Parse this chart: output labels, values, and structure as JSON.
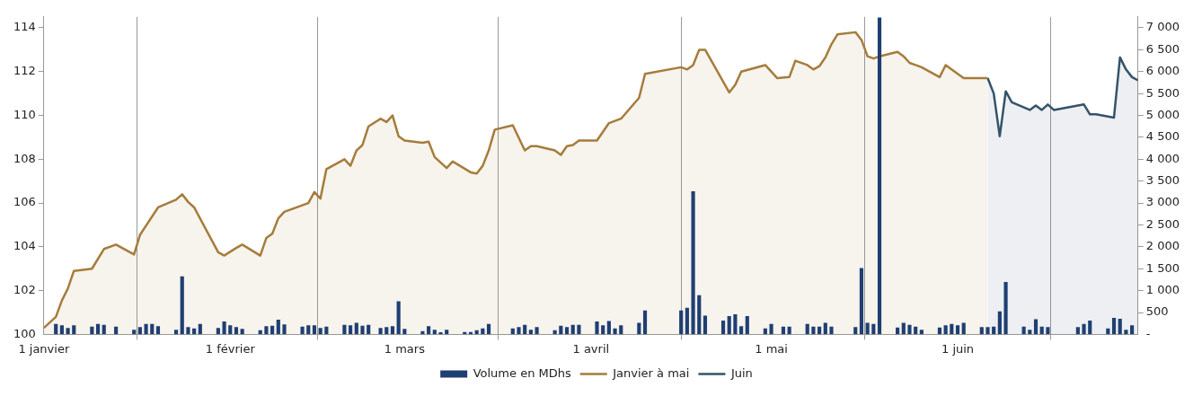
{
  "chart_data": {
    "type": "area",
    "xlim": [
      "--01-01",
      "--07-01"
    ],
    "xticks": [
      {
        "value": "--01-01",
        "label": "1 janvier"
      },
      {
        "value": "--02-01",
        "label": "1 février"
      },
      {
        "value": "--03-01",
        "label": "1 mars"
      },
      {
        "value": "--04-01",
        "label": "1 avril"
      },
      {
        "value": "--05-01",
        "label": "1 mai"
      },
      {
        "value": "--06-01",
        "label": "1 juin"
      }
    ],
    "ylim": [
      100,
      114.5
    ],
    "yticks": [
      100,
      102,
      104,
      106,
      108,
      110,
      112,
      114
    ],
    "y2lim": [
      0,
      7250
    ],
    "y2ticks": [
      {
        "value": 0,
        "label": "-"
      },
      500,
      {
        "value": 1000,
        "label": "1 000"
      },
      {
        "value": 1500,
        "label": "1 500"
      },
      {
        "value": 2000,
        "label": "2 000"
      },
      {
        "value": 2500,
        "label": "2 500"
      },
      {
        "value": 3000,
        "label": "3 000"
      },
      {
        "value": 3500,
        "label": "3 500"
      },
      {
        "value": 4000,
        "label": "4 000"
      },
      {
        "value": 4500,
        "label": "4 500"
      },
      {
        "value": 5000,
        "label": "5 000"
      },
      {
        "value": 5500,
        "label": "5 500"
      },
      {
        "value": 6000,
        "label": "6 000"
      },
      {
        "value": 6500,
        "label": "6 500"
      },
      {
        "value": 7000,
        "label": "7 000"
      }
    ],
    "grid": "x",
    "legend": "bottom",
    "series": [
      {
        "name": "Volume en MDhs",
        "type": "bar",
        "axis": "y2",
        "color": "#1f3f73",
        "x": [
          "--01-03",
          "--01-04",
          "--01-05",
          "--01-06",
          "--01-09",
          "--01-10",
          "--01-11",
          "--01-13",
          "--01-16",
          "--01-17",
          "--01-18",
          "--01-19",
          "--01-20",
          "--01-23",
          "--01-24",
          "--01-25",
          "--01-26",
          "--01-27",
          "--01-30",
          "--01-31",
          "--02-01",
          "--02-02",
          "--02-03",
          "--02-06",
          "--02-07",
          "--02-08",
          "--02-09",
          "--02-10",
          "--02-13",
          "--02-14",
          "--02-15",
          "--02-16",
          "--02-17",
          "--02-20",
          "--02-21",
          "--02-22",
          "--02-23",
          "--02-24",
          "--02-26",
          "--02-27",
          "--02-28",
          "--02-29",
          "--03-01",
          "--03-04",
          "--03-05",
          "--03-06",
          "--03-07",
          "--03-08",
          "--03-11",
          "--03-12",
          "--03-13",
          "--03-14",
          "--03-15",
          "--03-19",
          "--03-20",
          "--03-21",
          "--03-22",
          "--03-23",
          "--03-26",
          "--03-27",
          "--03-28",
          "--03-29",
          "--03-30",
          "--04-02",
          "--04-03",
          "--04-04",
          "--04-05",
          "--04-06",
          "--04-09",
          "--04-10",
          "--04-16",
          "--04-17",
          "--04-18",
          "--04-19",
          "--04-20",
          "--04-23",
          "--04-24",
          "--04-25",
          "--04-26",
          "--04-27",
          "--04-30",
          "--05-01",
          "--05-03",
          "--05-04",
          "--05-07",
          "--05-08",
          "--05-09",
          "--05-10",
          "--05-11",
          "--05-15",
          "--05-16",
          "--05-17",
          "--05-18",
          "--05-19",
          "--05-22",
          "--05-23",
          "--05-24",
          "--05-25",
          "--05-26",
          "--05-29",
          "--05-30",
          "--05-31",
          "--06-01",
          "--06-02",
          "--06-05",
          "--06-06",
          "--06-07",
          "--06-08",
          "--06-09",
          "--06-12",
          "--06-13",
          "--06-14",
          "--06-15",
          "--06-16",
          "--06-21",
          "--06-22",
          "--06-23",
          "--06-26",
          "--06-27",
          "--06-28",
          "--06-29",
          "--06-30"
        ],
        "values": [
          230,
          200,
          140,
          200,
          170,
          230,
          210,
          170,
          100,
          160,
          230,
          230,
          180,
          100,
          1320,
          160,
          130,
          230,
          140,
          290,
          200,
          160,
          120,
          90,
          180,
          190,
          330,
          220,
          170,
          200,
          200,
          140,
          170,
          210,
          200,
          260,
          190,
          210,
          140,
          160,
          180,
          750,
          120,
          70,
          180,
          100,
          40,
          100,
          50,
          50,
          90,
          130,
          230,
          130,
          160,
          210,
          100,
          160,
          90,
          190,
          160,
          210,
          210,
          290,
          200,
          300,
          130,
          200,
          260,
          540,
          540,
          600,
          3260,
          890,
          420,
          310,
          410,
          450,
          180,
          410,
          130,
          230,
          170,
          170,
          230,
          170,
          170,
          260,
          170,
          160,
          1510,
          260,
          230,
          7230,
          150,
          260,
          210,
          170,
          100,
          150,
          200,
          230,
          200,
          260,
          160,
          160,
          170,
          520,
          1190,
          170,
          100,
          340,
          170,
          160,
          160,
          230,
          310,
          130,
          370,
          350,
          100,
          200
        ]
      },
      {
        "name": "Janvier à mai",
        "color": "#a57c3b",
        "x": [
          "--01-01",
          "--01-03",
          "--01-04",
          "--01-05",
          "--01-06",
          "--01-09",
          "--01-11",
          "--01-13",
          "--01-16",
          "--01-17",
          "--01-20",
          "--01-23",
          "--01-24",
          "--01-25",
          "--01-26",
          "--01-30",
          "--01-31",
          "--02-02",
          "--02-03",
          "--02-06",
          "--02-07",
          "--02-08",
          "--02-09",
          "--02-10",
          "--02-14",
          "--02-15",
          "--02-16",
          "--02-17",
          "--02-20",
          "--02-21",
          "--02-22",
          "--02-23",
          "--02-24",
          "--02-26",
          "--02-27",
          "--02-28",
          "--02-29",
          "--03-01",
          "--03-04",
          "--03-05",
          "--03-06",
          "--03-08",
          "--03-09",
          "--03-12",
          "--03-13",
          "--03-14",
          "--03-15",
          "--03-16",
          "--03-19",
          "--03-21",
          "--03-22",
          "--03-23",
          "--03-26",
          "--03-27",
          "--03-28",
          "--03-29",
          "--03-30",
          "--04-02",
          "--04-04",
          "--04-06",
          "--04-09",
          "--04-10",
          "--04-16",
          "--04-17",
          "--04-18",
          "--04-19",
          "--04-20",
          "--04-24",
          "--04-25",
          "--04-26",
          "--04-30",
          "--05-02",
          "--05-04",
          "--05-05",
          "--05-07",
          "--05-08",
          "--05-09",
          "--05-10",
          "--05-11",
          "--05-12",
          "--05-15",
          "--05-16",
          "--05-17",
          "--05-18",
          "--05-19",
          "--05-22",
          "--05-23",
          "--05-24",
          "--05-25",
          "--05-26",
          "--05-29",
          "--05-30",
          "--06-02",
          "--06-06"
        ],
        "values": [
          100.3,
          100.8,
          101.55,
          102.1,
          102.9,
          103.0,
          103.9,
          104.1,
          103.65,
          104.55,
          105.8,
          106.15,
          106.4,
          106.05,
          105.8,
          103.75,
          103.6,
          103.95,
          104.1,
          103.6,
          104.4,
          104.6,
          105.3,
          105.6,
          106.0,
          106.5,
          106.2,
          107.55,
          108.0,
          107.7,
          108.4,
          108.65,
          109.5,
          109.85,
          109.7,
          110.0,
          109.05,
          108.85,
          108.75,
          108.8,
          108.1,
          107.6,
          107.9,
          107.4,
          107.35,
          107.7,
          108.4,
          109.35,
          109.55,
          108.4,
          108.6,
          108.6,
          108.4,
          108.2,
          108.6,
          108.65,
          108.85,
          108.85,
          109.65,
          109.85,
          110.8,
          111.9,
          112.2,
          112.1,
          112.3,
          113.0,
          113.0,
          111.05,
          111.4,
          112.0,
          112.3,
          111.7,
          111.75,
          112.5,
          112.3,
          112.1,
          112.25,
          112.65,
          113.25,
          113.7,
          113.8,
          113.45,
          112.7,
          112.6,
          112.7,
          112.9,
          112.7,
          112.4,
          112.3,
          112.2,
          111.75,
          112.3,
          111.7,
          111.7
        ]
      },
      {
        "name": "Juin",
        "color": "#34536a",
        "x": [
          "--06-06",
          "--06-07",
          "--06-08",
          "--06-09",
          "--06-10",
          "--06-13",
          "--06-14",
          "--06-15",
          "--06-16",
          "--06-17",
          "--06-22",
          "--06-23",
          "--06-24",
          "--06-27",
          "--06-28",
          "--06-29",
          "--06-30",
          "--07-01"
        ],
        "values": [
          111.7,
          111.0,
          109.05,
          111.1,
          110.6,
          110.25,
          110.45,
          110.25,
          110.5,
          110.25,
          110.5,
          110.05,
          110.05,
          109.9,
          112.65,
          112.1,
          111.75,
          111.6
        ]
      }
    ]
  }
}
